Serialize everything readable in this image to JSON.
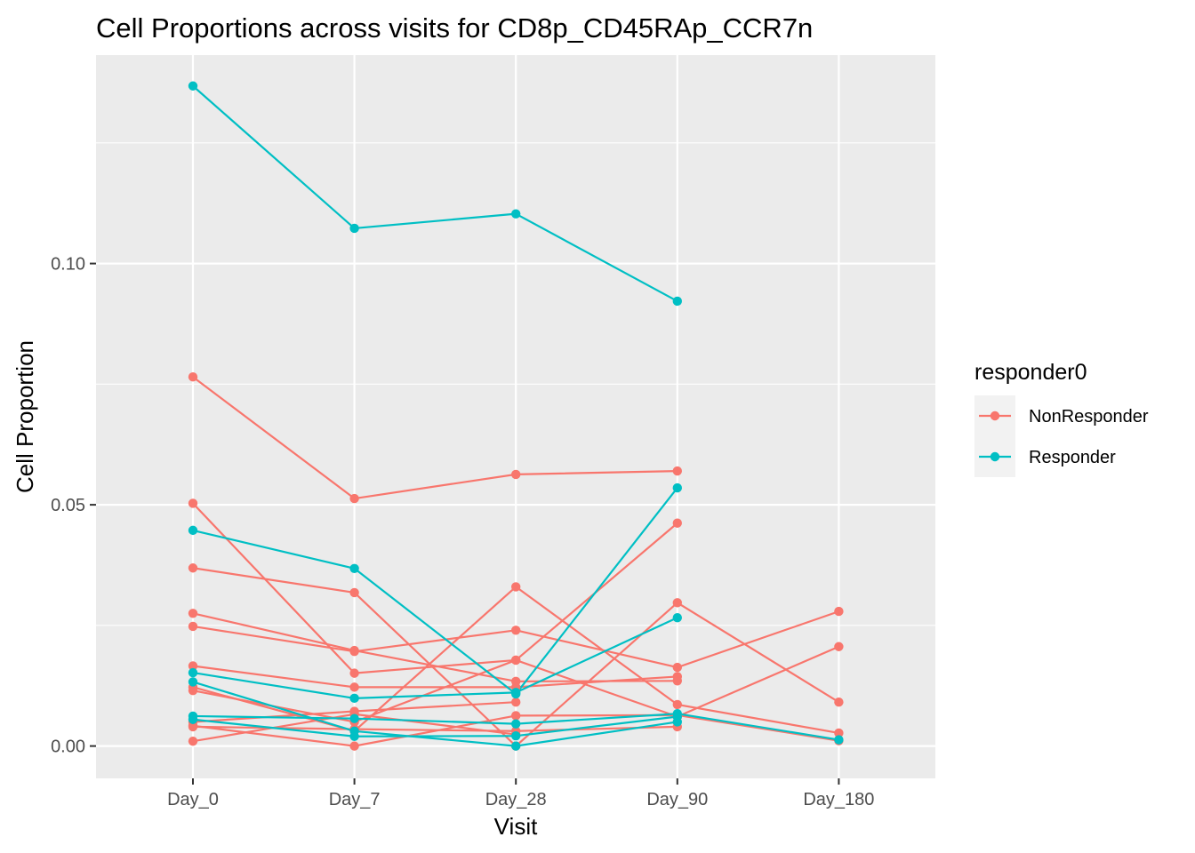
{
  "chart_data": {
    "type": "line",
    "title": "Cell Proportions across visits for CD8p_CD45RAp_CCR7n",
    "xlabel": "Visit",
    "ylabel": "Cell Proportion",
    "categories": [
      "Day_0",
      "Day_7",
      "Day_28",
      "Day_90",
      "Day_180"
    ],
    "yticks": [
      0.0,
      0.05,
      0.1
    ],
    "ytick_labels": [
      "0.00",
      "0.05",
      "0.10"
    ],
    "ylim": [
      -0.0067,
      0.1432
    ],
    "grid": true,
    "legend": {
      "title": "responder0",
      "position": "right",
      "entries": [
        {
          "name": "NonResponder",
          "color": "#F8766D"
        },
        {
          "name": "Responder",
          "color": "#00BFC4"
        }
      ]
    },
    "colors": {
      "NonResponder": "#F8766D",
      "Responder": "#00BFC4",
      "panel_background": "#EBEBEB",
      "grid": "#FFFFFF"
    },
    "series": [
      {
        "group": "Responder",
        "values": [
          0.1368,
          0.1073,
          0.1103,
          0.0922,
          null
        ]
      },
      {
        "group": "Responder",
        "values": [
          0.0447,
          0.0368,
          0.0108,
          0.0535,
          null
        ]
      },
      {
        "group": "Responder",
        "values": [
          0.0152,
          0.0099,
          0.0111,
          0.0266,
          null
        ]
      },
      {
        "group": "Responder",
        "values": [
          0.0133,
          0.0031,
          0.0,
          0.005,
          null
        ]
      },
      {
        "group": "Responder",
        "values": [
          0.0062,
          0.0057,
          0.0046,
          0.0067,
          0.0013
        ]
      },
      {
        "group": "Responder",
        "values": [
          0.0055,
          0.002,
          0.0021,
          0.0061,
          null
        ]
      },
      {
        "group": "NonResponder",
        "values": [
          0.0765,
          0.0513,
          0.0563,
          0.057,
          null
        ]
      },
      {
        "group": "NonResponder",
        "values": [
          0.0503,
          0.0151,
          0.0178,
          0.0462,
          null
        ]
      },
      {
        "group": "NonResponder",
        "values": [
          0.0369,
          0.0318,
          0.0,
          0.0297,
          0.0091
        ]
      },
      {
        "group": "NonResponder",
        "values": [
          0.0275,
          0.0198,
          0.0134,
          0.0135,
          null
        ]
      },
      {
        "group": "NonResponder",
        "values": [
          0.0248,
          0.0196,
          0.024,
          0.0163,
          0.0279
        ]
      },
      {
        "group": "NonResponder",
        "values": [
          0.0166,
          0.0122,
          0.0122,
          0.0144,
          null
        ]
      },
      {
        "group": "NonResponder",
        "values": [
          0.0122,
          0.0031,
          0.033,
          0.0086,
          0.0027
        ]
      },
      {
        "group": "NonResponder",
        "values": [
          0.0115,
          0.005,
          0.0178,
          0.0061,
          0.0206
        ]
      },
      {
        "group": "NonResponder",
        "values": [
          0.005,
          0.0072,
          0.0091,
          null,
          null
        ]
      },
      {
        "group": "NonResponder",
        "values": [
          0.0042,
          0.0,
          0.0063,
          0.0064,
          0.0011
        ]
      },
      {
        "group": "NonResponder",
        "values": [
          0.004,
          0.0035,
          0.0031,
          0.004,
          null
        ]
      },
      {
        "group": "NonResponder",
        "values": [
          0.001,
          0.0066,
          0.0024,
          null,
          null
        ]
      }
    ]
  }
}
